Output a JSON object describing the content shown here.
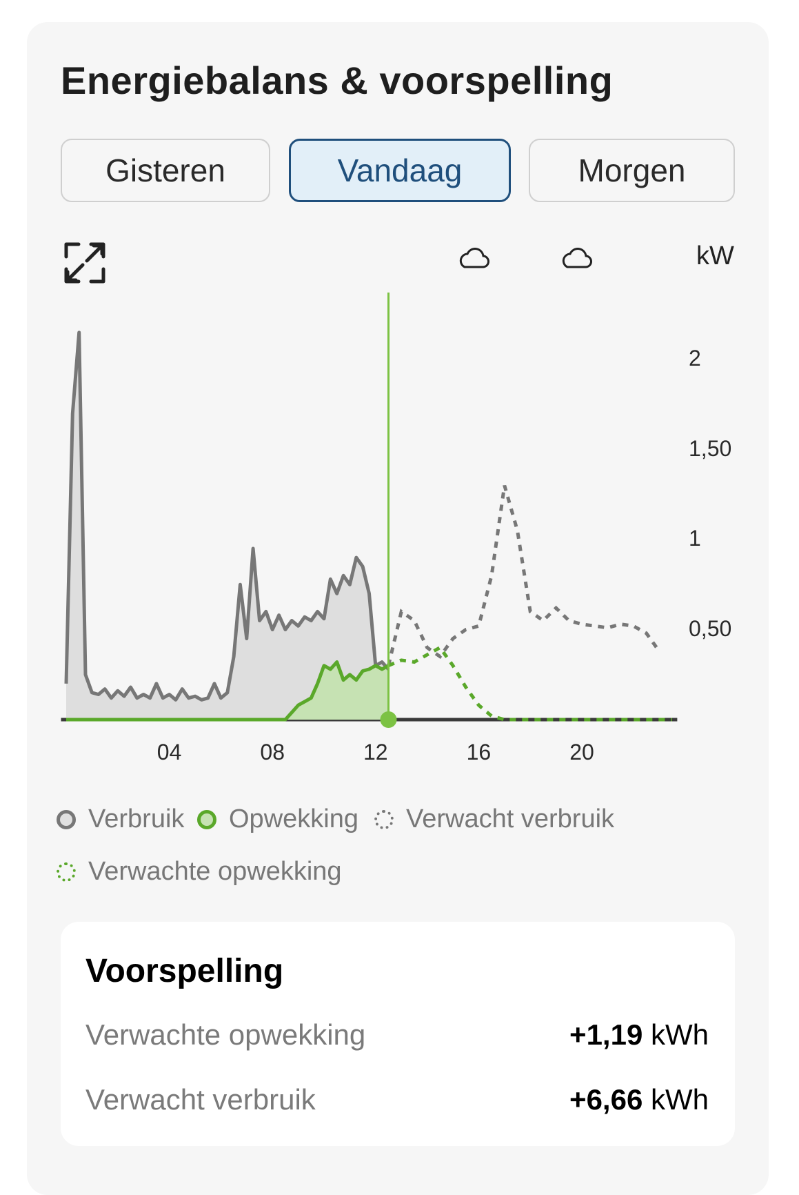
{
  "header": {
    "title": "Energiebalans & voorspelling"
  },
  "tabs": [
    {
      "label": "Gisteren",
      "active": false
    },
    {
      "label": "Vandaag",
      "active": true
    },
    {
      "label": "Morgen",
      "active": false
    }
  ],
  "toolbar": {
    "expand_icon": "expand-icon",
    "weather_icons": [
      "cloud-icon",
      "cloud-icon"
    ]
  },
  "colors": {
    "accent": "#5aa82a",
    "gray": "#777777",
    "active_tab": "#1f4f7c"
  },
  "chart_data": {
    "type": "area",
    "unit_label": "kW",
    "y_ticks": [
      "0,50",
      "1",
      "1,50",
      "2"
    ],
    "y_tick_values": [
      0.5,
      1,
      1.5,
      2
    ],
    "x_ticks": [
      "04",
      "08",
      "12",
      "16",
      "20"
    ],
    "x_tick_values": [
      4,
      8,
      12,
      16,
      20
    ],
    "xlim": [
      0,
      24
    ],
    "ylim": [
      0,
      2.3
    ],
    "now_hour": 12.5,
    "series": [
      {
        "name": "Verbruik",
        "style": "solid-area",
        "color": "#777777",
        "x": [
          0,
          0.25,
          0.5,
          0.75,
          1,
          1.25,
          1.5,
          1.75,
          2,
          2.25,
          2.5,
          2.75,
          3,
          3.25,
          3.5,
          3.75,
          4,
          4.25,
          4.5,
          4.75,
          5,
          5.25,
          5.5,
          5.75,
          6,
          6.25,
          6.5,
          6.75,
          7,
          7.25,
          7.5,
          7.75,
          8,
          8.25,
          8.5,
          8.75,
          9,
          9.25,
          9.5,
          9.75,
          10,
          10.25,
          10.5,
          10.75,
          11,
          11.25,
          11.5,
          11.75,
          12,
          12.25,
          12.5
        ],
        "y": [
          0.2,
          1.7,
          2.15,
          0.25,
          0.15,
          0.14,
          0.17,
          0.12,
          0.16,
          0.13,
          0.18,
          0.12,
          0.14,
          0.12,
          0.2,
          0.12,
          0.14,
          0.11,
          0.17,
          0.12,
          0.13,
          0.11,
          0.12,
          0.2,
          0.12,
          0.15,
          0.35,
          0.75,
          0.45,
          0.95,
          0.55,
          0.6,
          0.5,
          0.58,
          0.5,
          0.55,
          0.52,
          0.57,
          0.55,
          0.6,
          0.56,
          0.78,
          0.7,
          0.8,
          0.75,
          0.9,
          0.85,
          0.7,
          0.3,
          0.32,
          0.28
        ]
      },
      {
        "name": "Opwekking",
        "style": "solid-area",
        "color": "#5aa82a",
        "x": [
          0,
          8.5,
          8.75,
          9,
          9.25,
          9.5,
          9.75,
          10,
          10.25,
          10.5,
          10.75,
          11,
          11.25,
          11.5,
          11.75,
          12,
          12.25,
          12.5
        ],
        "y": [
          0,
          0,
          0.04,
          0.08,
          0.1,
          0.12,
          0.2,
          0.3,
          0.28,
          0.32,
          0.22,
          0.25,
          0.22,
          0.27,
          0.28,
          0.3,
          0.28,
          0.3
        ]
      },
      {
        "name": "Verwacht verbruik",
        "style": "dotted",
        "color": "#777777",
        "x": [
          12.5,
          13,
          13.5,
          14,
          14.5,
          15,
          15.5,
          16,
          16.5,
          17,
          17.5,
          18,
          18.5,
          19,
          19.5,
          20,
          20.5,
          21,
          21.5,
          22,
          22.5,
          23
        ],
        "y": [
          0.3,
          0.6,
          0.55,
          0.4,
          0.35,
          0.45,
          0.5,
          0.52,
          0.8,
          1.3,
          1.05,
          0.6,
          0.55,
          0.62,
          0.55,
          0.53,
          0.52,
          0.51,
          0.53,
          0.52,
          0.48,
          0.38
        ]
      },
      {
        "name": "Verwachte opwekking",
        "style": "dotted",
        "color": "#5aa82a",
        "x": [
          12.5,
          13,
          13.5,
          14,
          14.5,
          15,
          15.5,
          16,
          16.5,
          17,
          23.5
        ],
        "y": [
          0.3,
          0.33,
          0.32,
          0.36,
          0.4,
          0.3,
          0.18,
          0.08,
          0.02,
          0,
          0
        ]
      }
    ]
  },
  "legend": [
    {
      "label": "Verbruik"
    },
    {
      "label": "Opwekking"
    },
    {
      "label": "Verwacht verbruik"
    },
    {
      "label": "Verwachte opwekking"
    }
  ],
  "forecast": {
    "title": "Voorspelling",
    "rows": [
      {
        "label": "Verwachte opwekking",
        "value": "+1,19",
        "unit": "kWh"
      },
      {
        "label": "Verwacht verbruik",
        "value": "+6,66",
        "unit": "kWh"
      }
    ]
  }
}
